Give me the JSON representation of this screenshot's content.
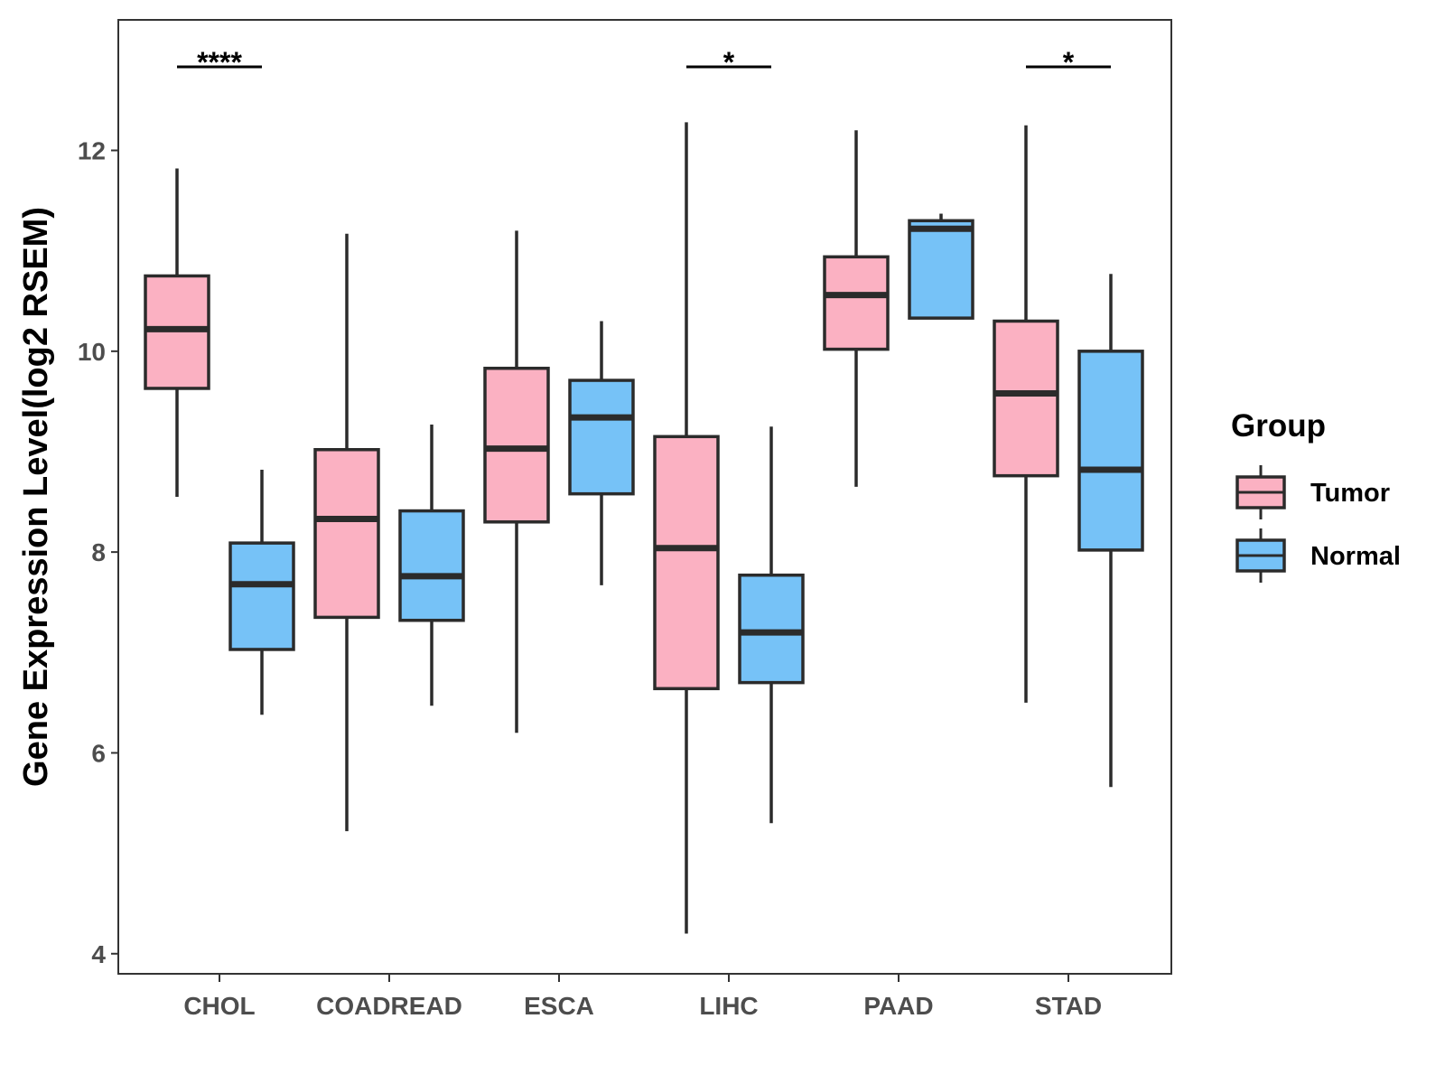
{
  "chart_data": {
    "type": "boxplot",
    "title": "",
    "xlabel": "",
    "ylabel": "Gene Expression Level(log2 RSEM)",
    "ylim": [
      3.8,
      13.3
    ],
    "yticks": [
      4,
      6,
      8,
      10,
      12
    ],
    "categories": [
      "CHOL",
      "COADREAD",
      "ESCA",
      "LIHC",
      "PAAD",
      "STAD"
    ],
    "legend": {
      "title": "Group",
      "position": "right"
    },
    "series": [
      {
        "name": "Tumor",
        "color": "#FBB1C2",
        "boxes": [
          {
            "min": 8.55,
            "q1": 9.63,
            "median": 10.22,
            "q3": 10.75,
            "max": 11.82
          },
          {
            "min": 5.22,
            "q1": 7.35,
            "median": 8.33,
            "q3": 9.02,
            "max": 11.17
          },
          {
            "min": 6.2,
            "q1": 8.3,
            "median": 9.03,
            "q3": 9.83,
            "max": 11.2
          },
          {
            "min": 4.2,
            "q1": 6.64,
            "median": 8.04,
            "q3": 9.15,
            "max": 12.28
          },
          {
            "min": 8.65,
            "q1": 10.02,
            "median": 10.56,
            "q3": 10.94,
            "max": 12.2
          },
          {
            "min": 6.5,
            "q1": 8.76,
            "median": 9.58,
            "q3": 10.3,
            "max": 12.25
          }
        ]
      },
      {
        "name": "Normal",
        "color": "#76C2F7",
        "boxes": [
          {
            "min": 6.38,
            "q1": 7.03,
            "median": 7.68,
            "q3": 8.09,
            "max": 8.82
          },
          {
            "min": 6.47,
            "q1": 7.32,
            "median": 7.76,
            "q3": 8.41,
            "max": 9.27
          },
          {
            "min": 7.67,
            "q1": 8.58,
            "median": 9.34,
            "q3": 9.71,
            "max": 10.3
          },
          {
            "min": 5.3,
            "q1": 6.7,
            "median": 7.2,
            "q3": 7.77,
            "max": 9.25
          },
          {
            "min": 10.33,
            "q1": 10.33,
            "median": 11.22,
            "q3": 11.3,
            "max": 11.37
          },
          {
            "min": 5.66,
            "q1": 8.02,
            "median": 8.82,
            "q3": 10.0,
            "max": 10.77
          }
        ]
      }
    ],
    "annotations": [
      {
        "category": "CHOL",
        "label": "****"
      },
      {
        "category": "LIHC",
        "label": "*"
      },
      {
        "category": "STAD",
        "label": "*"
      }
    ]
  }
}
